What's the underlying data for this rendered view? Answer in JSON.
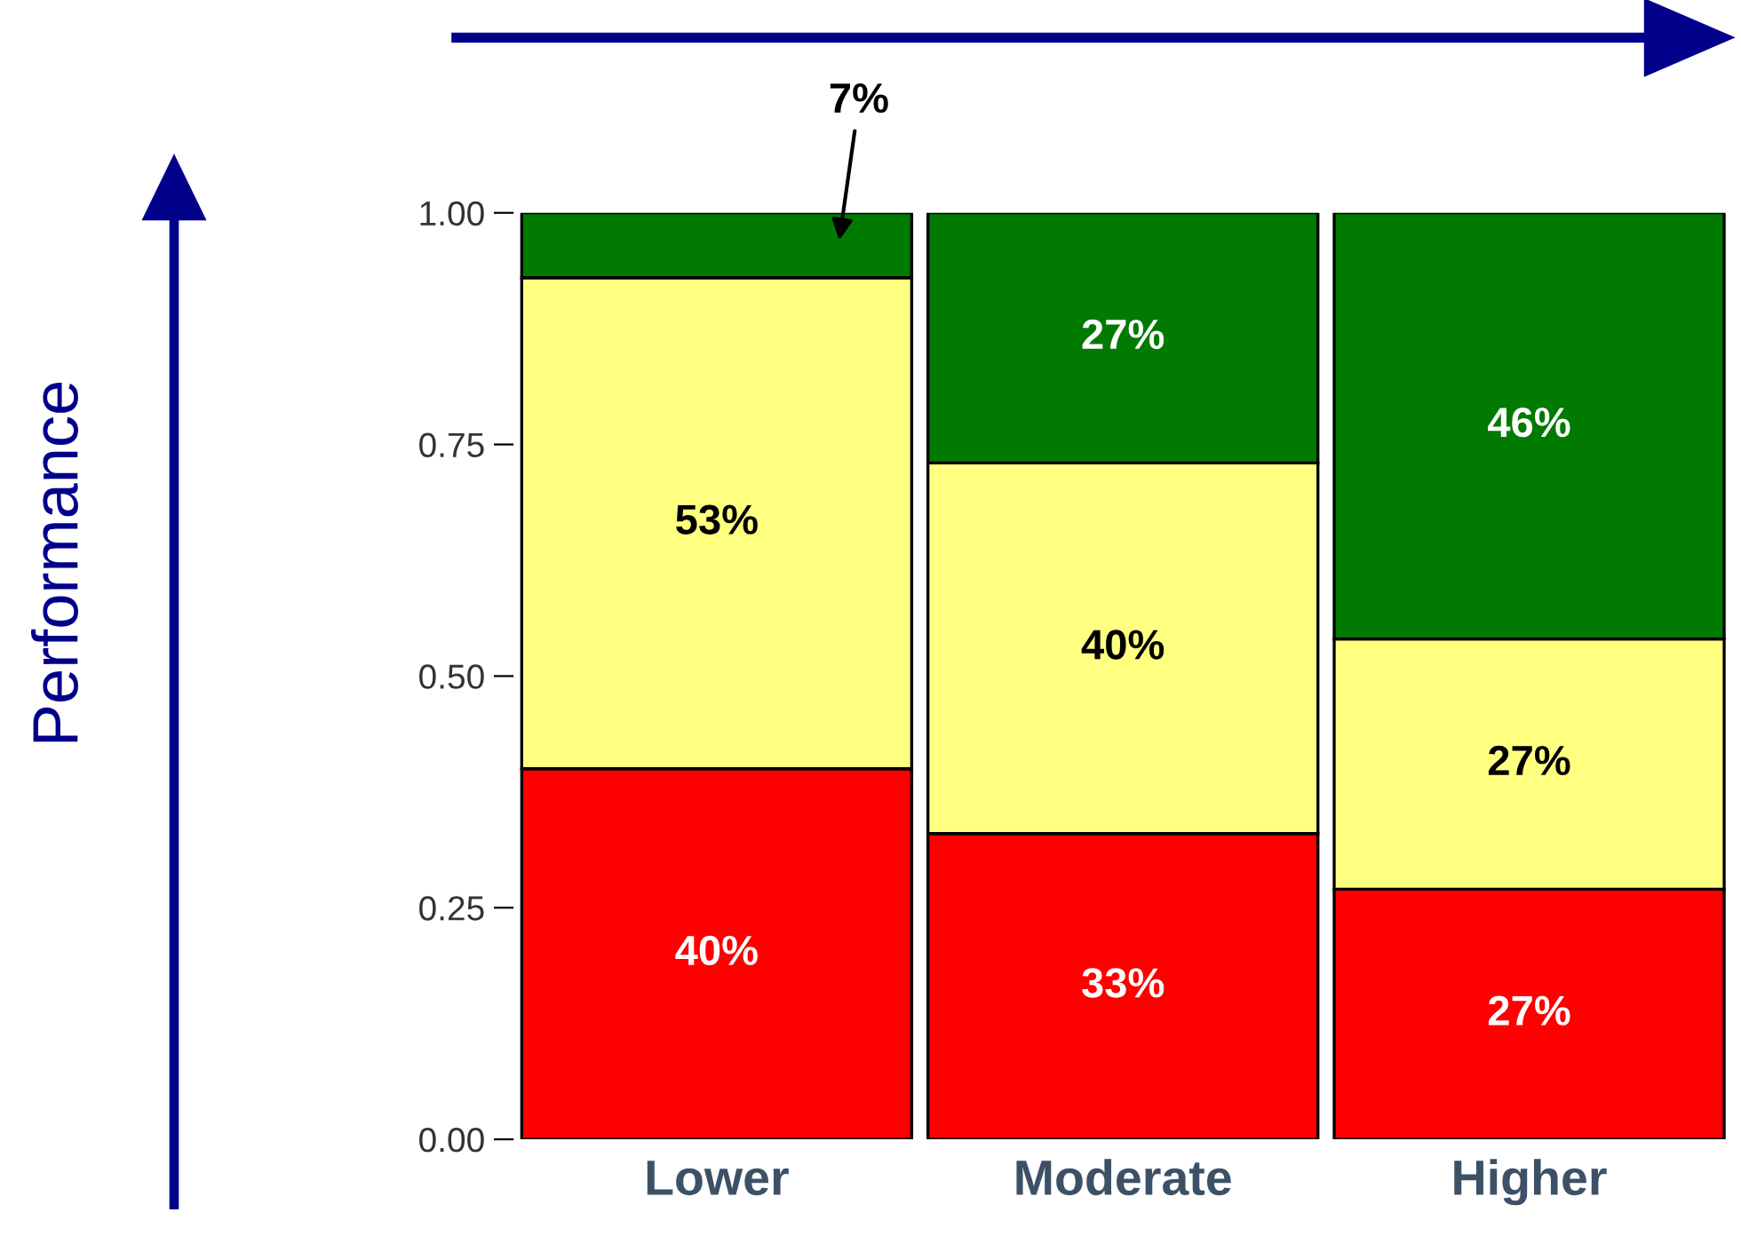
{
  "chart_data": {
    "type": "bar",
    "stacked": true,
    "annotations": [
      "Performance"
    ],
    "categories": [
      "Lower",
      "Moderate",
      "Higher"
    ],
    "series": [
      {
        "color": "#ff0000",
        "values": [
          0.4,
          0.33,
          0.27
        ],
        "value_labels": [
          "40%",
          "33%",
          "27%"
        ]
      },
      {
        "color": "#ffff80",
        "values": [
          0.53,
          0.4,
          0.27
        ],
        "value_labels": [
          "53%",
          "40%",
          "27%"
        ]
      },
      {
        "color": "#007a00",
        "values": [
          0.07,
          0.27,
          0.46
        ],
        "value_labels": [
          "7%",
          "27%",
          "46%"
        ]
      }
    ],
    "ylim": [
      0,
      1
    ],
    "yticks": [
      {
        "value": 0,
        "label": "0.00"
      },
      {
        "value": 0.25,
        "label": "0.25"
      },
      {
        "value": 0.5,
        "label": "0.50"
      },
      {
        "value": 0.75,
        "label": "0.75"
      },
      {
        "value": 1,
        "label": "1.00"
      }
    ],
    "grid": false,
    "legend": false
  }
}
